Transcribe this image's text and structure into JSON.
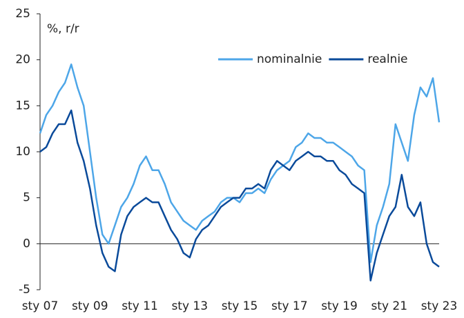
{
  "chart_data": {
    "type": "line",
    "y_label": "%, r/r",
    "categories": [
      "sty 07",
      null,
      null,
      null,
      null,
      null,
      null,
      null,
      "sty 09",
      null,
      null,
      null,
      null,
      null,
      null,
      null,
      "sty 11",
      null,
      null,
      null,
      null,
      null,
      null,
      null,
      "sty 13",
      null,
      null,
      null,
      null,
      null,
      null,
      null,
      "sty 15",
      null,
      null,
      null,
      null,
      null,
      null,
      null,
      "sty 17",
      null,
      null,
      null,
      null,
      null,
      null,
      null,
      "sty 19",
      null,
      null,
      null,
      null,
      null,
      null,
      null,
      "sty 21",
      null,
      null,
      null,
      null,
      null,
      null,
      null,
      "sty 23"
    ],
    "series": [
      {
        "name": "nominalnie",
        "color": "#4da6e8",
        "values": [
          12,
          14,
          15,
          16.5,
          17.5,
          19.5,
          17,
          15,
          10,
          5,
          1,
          0,
          2,
          4,
          5,
          6.5,
          8.5,
          9.5,
          8,
          8,
          6.5,
          4.5,
          3.5,
          2.5,
          2,
          1.5,
          2.5,
          3,
          3.5,
          4.5,
          5,
          5,
          4.5,
          5.5,
          5.5,
          6,
          5.5,
          7,
          8,
          8.5,
          9,
          10.5,
          11,
          12,
          11.5,
          11.5,
          11,
          11,
          10.5,
          10,
          9.5,
          8.5,
          8,
          -2,
          2,
          4,
          6.5,
          13,
          11,
          9,
          14,
          17,
          16,
          18,
          13.2
        ]
      },
      {
        "name": "realnie",
        "color": "#0a4a9a",
        "values": [
          10,
          10.5,
          12,
          13,
          13,
          14.5,
          11,
          9,
          6,
          2,
          -1,
          -2.5,
          -3,
          1,
          3,
          4,
          4.5,
          5,
          4.5,
          4.5,
          3,
          1.5,
          0.5,
          -1,
          -1.5,
          0.5,
          1.5,
          2,
          3,
          4,
          4.5,
          5,
          5,
          6,
          6,
          6.5,
          6,
          8,
          9,
          8.5,
          8,
          9,
          9.5,
          10,
          9.5,
          9.5,
          9,
          9,
          8,
          7.5,
          6.5,
          6,
          5.5,
          -4,
          -1,
          1,
          3,
          4,
          7.5,
          4,
          3,
          4.5,
          0,
          -2,
          -2.5
        ]
      }
    ],
    "ylim": [
      -5,
      25
    ],
    "yticks": [
      -5,
      0,
      5,
      10,
      15,
      20,
      25
    ],
    "legend": "upper right"
  }
}
